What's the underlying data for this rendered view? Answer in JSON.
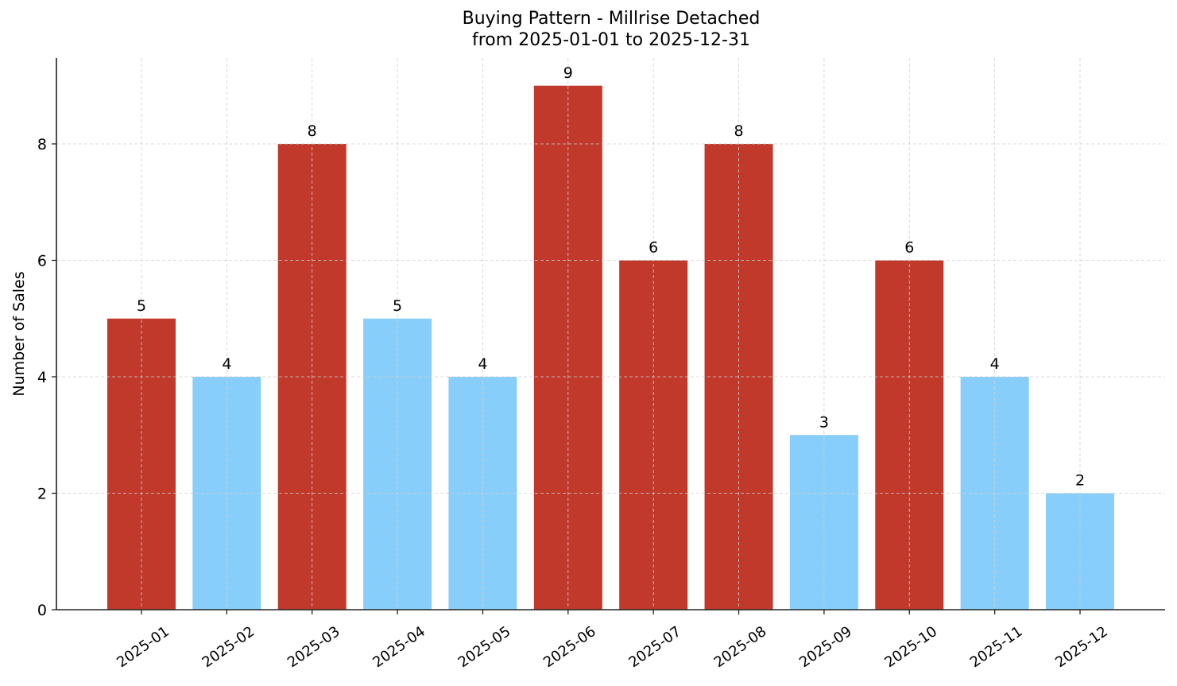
{
  "chart_data": {
    "type": "bar",
    "title": "Buying Pattern - Millrise Detached",
    "subtitle": "from 2025-01-01 to 2025-12-31",
    "xlabel": "",
    "ylabel": "Number of Sales",
    "categories": [
      "2025-01",
      "2025-02",
      "2025-03",
      "2025-04",
      "2025-05",
      "2025-06",
      "2025-07",
      "2025-08",
      "2025-09",
      "2025-10",
      "2025-11",
      "2025-12"
    ],
    "values": [
      5,
      4,
      8,
      5,
      4,
      9,
      6,
      8,
      3,
      6,
      4,
      2
    ],
    "bar_colors": [
      "#c0392b",
      "#87cefa",
      "#c0392b",
      "#87cefa",
      "#87cefa",
      "#c0392b",
      "#c0392b",
      "#c0392b",
      "#87cefa",
      "#c0392b",
      "#87cefa",
      "#87cefa"
    ],
    "yticks": [
      0,
      2,
      4,
      6,
      8
    ],
    "ylim": [
      0,
      9.45
    ],
    "grid": true,
    "data_labels": true,
    "legend": null
  },
  "colors": {
    "high": "#c0392b",
    "low": "#87cefa",
    "grid": "#d0d0d0",
    "axis": "#222222"
  }
}
